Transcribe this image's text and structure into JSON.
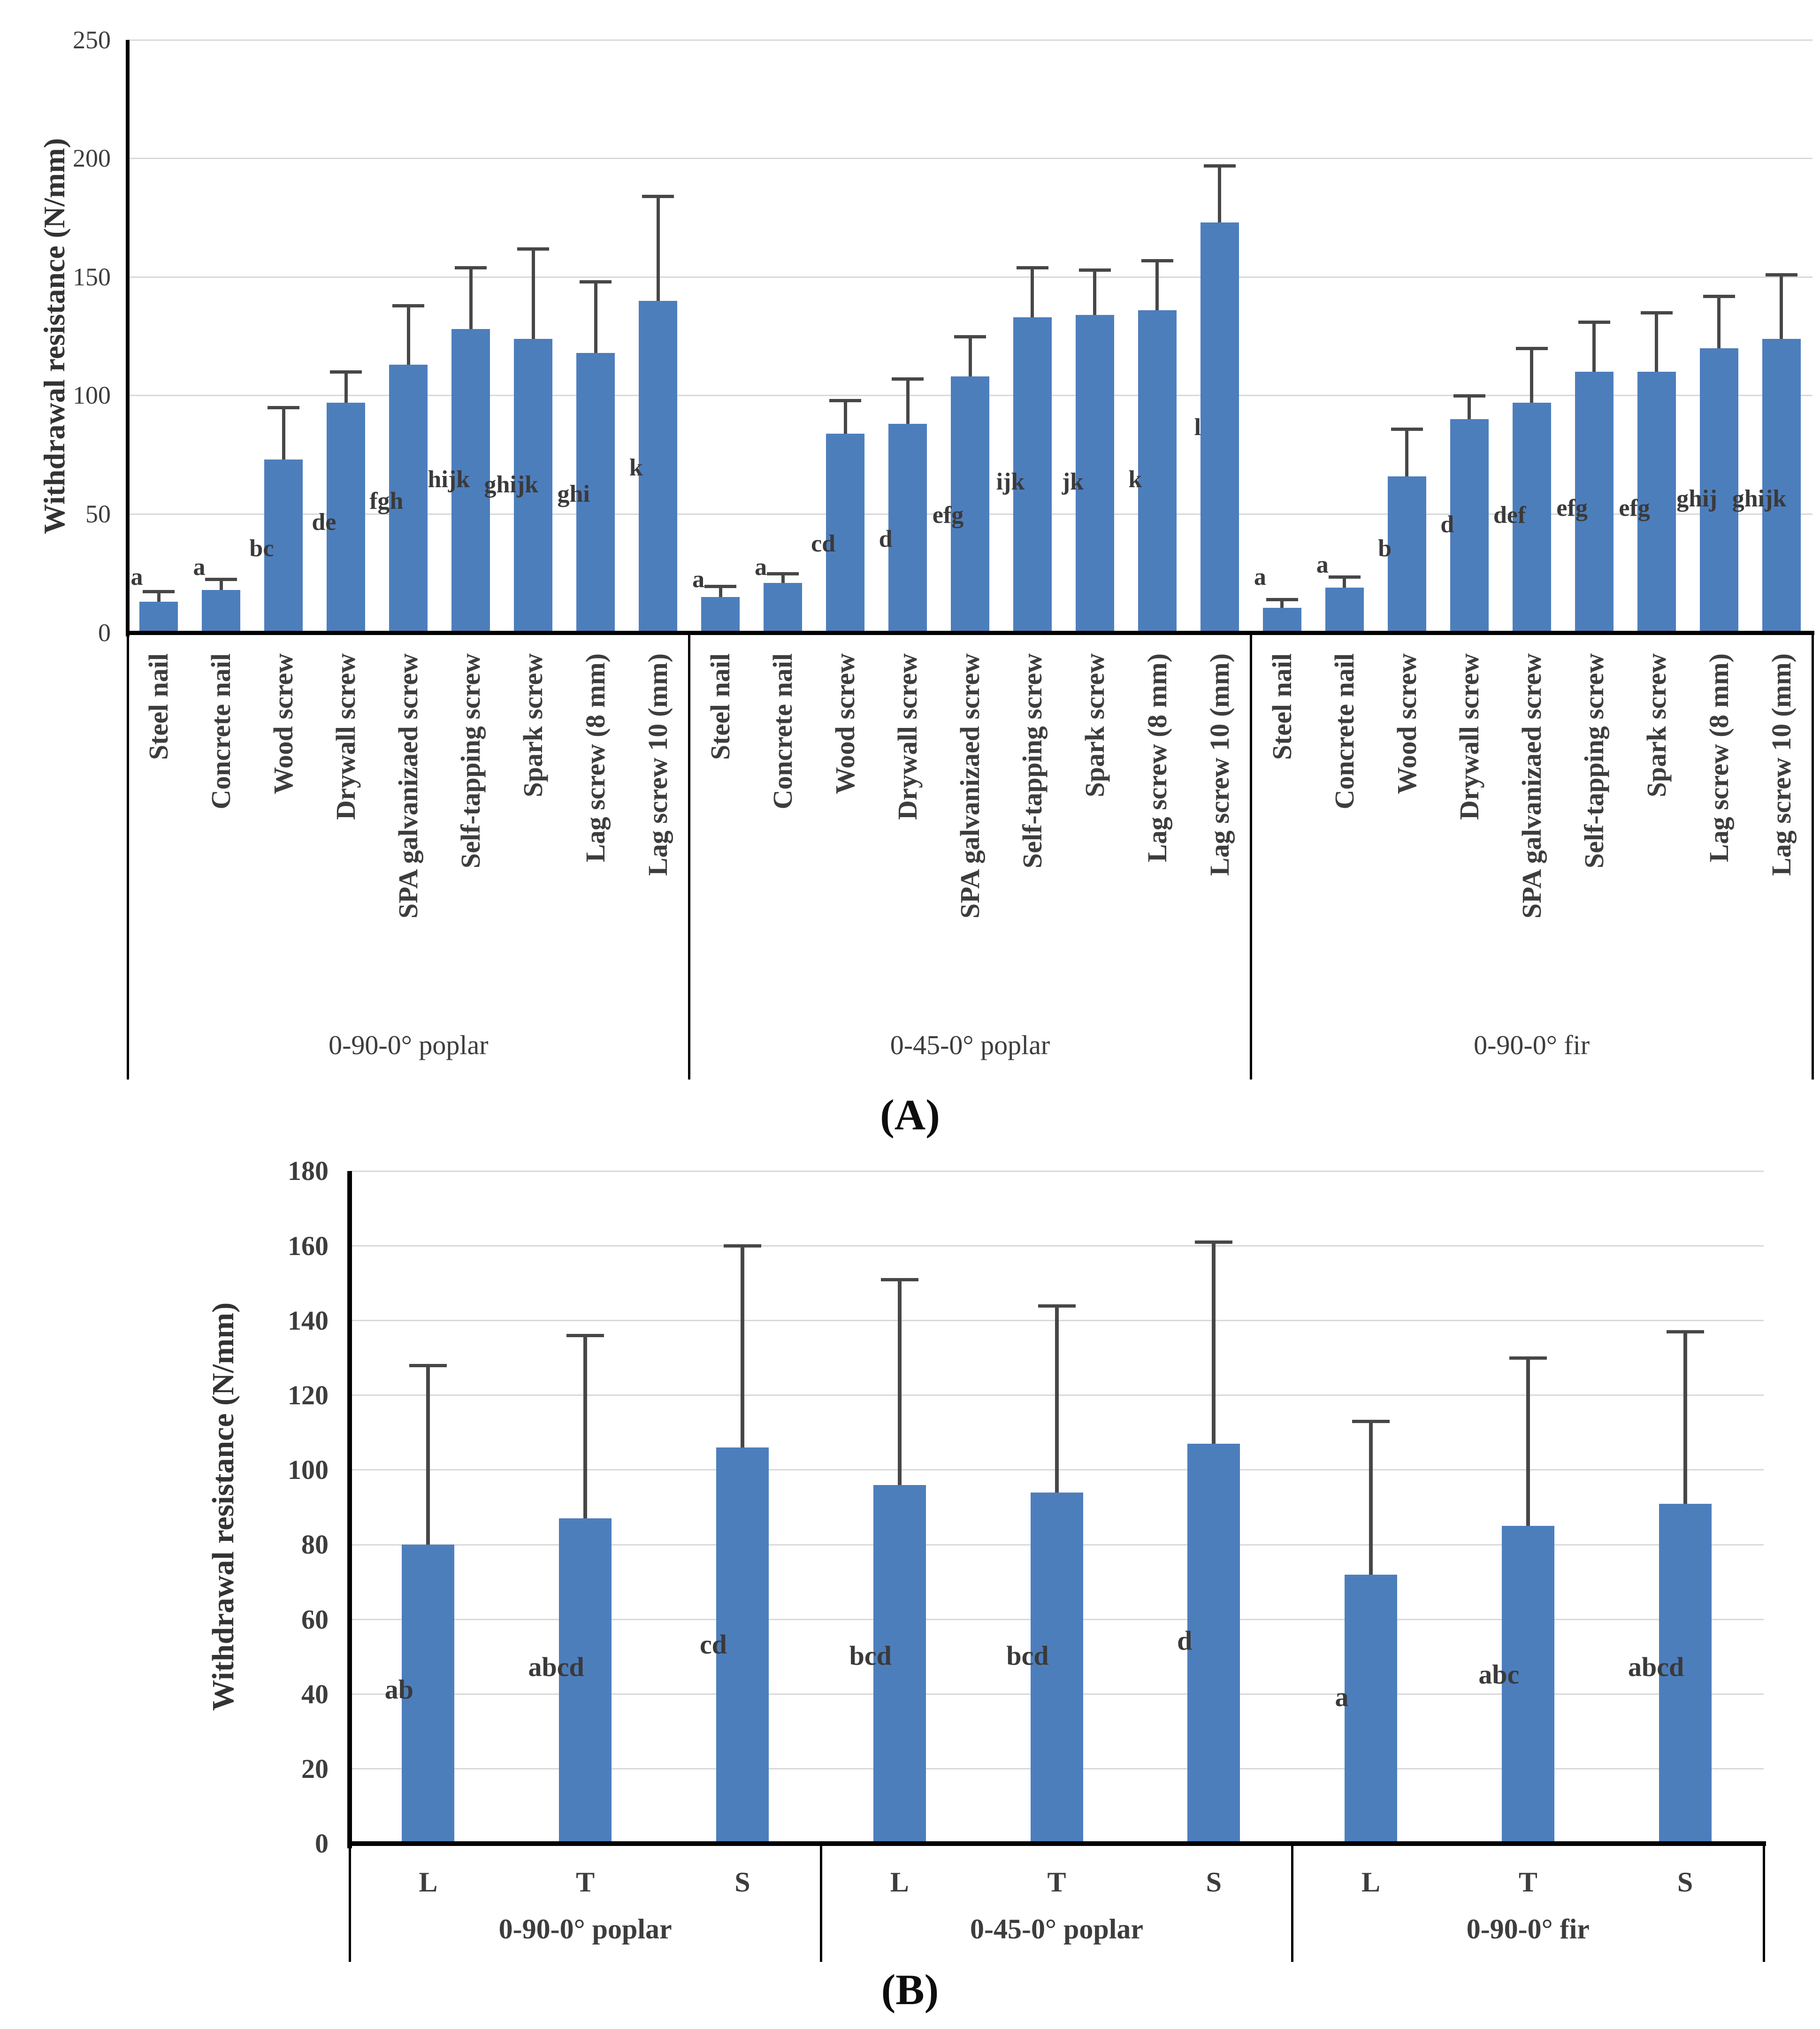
{
  "colors": {
    "bar": "#4d7ebc",
    "error_bar": "#474747",
    "gridline": "#d9d9d9",
    "axis": "#000000",
    "tick_text": "#3d3d3d",
    "letter_text": "#3a3a3a"
  },
  "captions": {
    "a": "(A)",
    "b": "(B)"
  },
  "chart_data": [
    {
      "type": "bar",
      "panel": "A",
      "title": "",
      "xlabel": "",
      "ylabel": "Withdrawal resistance (N/mm)",
      "ylim": [
        0,
        250
      ],
      "ytick_step": 50,
      "yticks": [
        "0",
        "50",
        "100",
        "150",
        "200",
        "250"
      ],
      "grid": true,
      "legend_position": "none",
      "error_bars": "plus-direction with caps",
      "groups": [
        {
          "label": "0-90-0° poplar",
          "categories": [
            "Steel nail",
            "Concrete nail",
            "Wood screw",
            "Drywall screw",
            "SPA galvanizaed screw",
            "Self-tapping screw",
            "Spark screw",
            "Lag screw (8 mm)",
            "Lag screw 10 (mm)"
          ],
          "values": [
            13,
            18,
            73,
            97,
            113,
            128,
            124,
            118,
            140
          ],
          "err_top": [
            17.5,
            22.5,
            95,
            110,
            138,
            154,
            162,
            148,
            184
          ],
          "letters": [
            "a",
            "a",
            "bc",
            "de",
            "fgh",
            "hijk",
            "ghijk",
            "ghi",
            "k"
          ],
          "letter_y": [
            23,
            27,
            35,
            46,
            55,
            64,
            62,
            58,
            69
          ]
        },
        {
          "label": "0-45-0° poplar",
          "categories": [
            "Steel nail",
            "Concrete nail",
            "Wood screw",
            "Drywall screw",
            "SPA galvanizaed screw",
            "Self-tapping screw",
            "Spark screw",
            "Lag screw (8 mm)",
            "Lag screw 10 (mm)"
          ],
          "values": [
            15,
            21,
            84,
            88,
            108,
            133,
            134,
            136,
            173
          ],
          "err_top": [
            19.5,
            25,
            98,
            107,
            125,
            154,
            153,
            157,
            197
          ],
          "letters": [
            "a",
            "a",
            "cd",
            "d",
            "efg",
            "ijk",
            "jk",
            "k",
            "l"
          ],
          "letter_y": [
            22,
            27,
            37,
            39,
            49,
            63,
            63,
            64,
            86
          ]
        },
        {
          "label": "0-90-0° fir",
          "categories": [
            "Steel nail",
            "Concrete nail",
            "Wood screw",
            "Drywall screw",
            "SPA galvanizaed screw",
            "Self-tapping screw",
            "Spark screw",
            "Lag screw (8 mm)",
            "Lag screw 10 (mm)"
          ],
          "values": [
            10.5,
            19,
            66,
            90,
            97,
            110,
            110,
            120,
            124
          ],
          "err_top": [
            14,
            23.5,
            86,
            100,
            120,
            131,
            135,
            142,
            151
          ],
          "letters": [
            "a",
            "a",
            "b",
            "d",
            "def",
            "efg",
            "efg",
            "ghij",
            "ghijk"
          ],
          "letter_y": [
            23,
            28,
            35,
            45,
            49,
            52,
            52,
            56,
            56
          ]
        }
      ]
    },
    {
      "type": "bar",
      "panel": "B",
      "title": "",
      "xlabel": "",
      "ylabel": "Withdrawal resistance (N/mm)",
      "ylim": [
        0,
        180
      ],
      "ytick_step": 20,
      "yticks": [
        "0",
        "20",
        "40",
        "60",
        "80",
        "100",
        "120",
        "140",
        "160",
        "180"
      ],
      "grid": true,
      "legend_position": "none",
      "error_bars": "plus-direction with caps",
      "groups": [
        {
          "label": "0-90-0° poplar",
          "categories": [
            "L",
            "T",
            "S"
          ],
          "values": [
            80,
            87,
            106
          ],
          "err_top": [
            128,
            136,
            160
          ],
          "letters": [
            "ab",
            "abcd",
            "cd"
          ],
          "letter_y": [
            41,
            47,
            53
          ]
        },
        {
          "label": "0-45-0° poplar",
          "categories": [
            "L",
            "T",
            "S"
          ],
          "values": [
            96,
            94,
            107
          ],
          "err_top": [
            151,
            144,
            161
          ],
          "letters": [
            "bcd",
            "bcd",
            "d"
          ],
          "letter_y": [
            50,
            50,
            54
          ]
        },
        {
          "label": "0-90-0° fir",
          "categories": [
            "L",
            "T",
            "S"
          ],
          "values": [
            72,
            85,
            91
          ],
          "err_top": [
            113,
            130,
            137
          ],
          "letters": [
            "a",
            "abc",
            "abcd"
          ],
          "letter_y": [
            39,
            45,
            47
          ]
        }
      ]
    }
  ]
}
